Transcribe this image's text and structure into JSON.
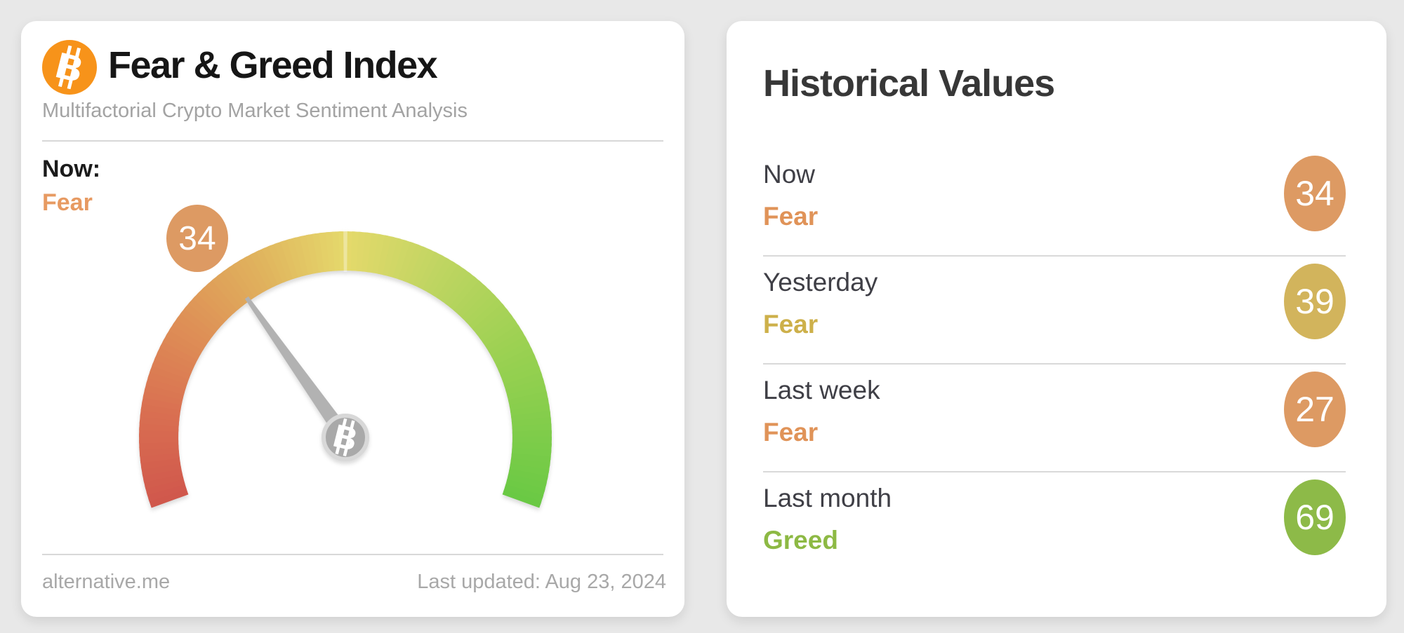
{
  "page": {
    "background_color": "#e8e8e8"
  },
  "gauge_card": {
    "title": "Fear & Greed Index",
    "subtitle": "Multifactorial Crypto Market Sentiment Analysis",
    "now_label": "Now:",
    "now_classification": "Fear",
    "value_label": "34",
    "source": "alternative.me",
    "last_updated": "Last updated: Aug 23, 2024",
    "colors": {
      "logo": "#f7931a",
      "classification_text": "#e79a62",
      "value_badge": "#dd9a63",
      "needle": "#b2b2b2",
      "pivot": "#a9a9a9",
      "pivot_border": "#d8d8d8"
    }
  },
  "historical_card": {
    "title": "Historical Values",
    "rows": [
      {
        "label": "Now",
        "classification": "Fear",
        "value": "34",
        "badge_color": "#dd9a63",
        "classification_color": "#e09358"
      },
      {
        "label": "Yesterday",
        "classification": "Fear",
        "value": "39",
        "badge_color": "#d2b45c",
        "classification_color": "#cdb04a"
      },
      {
        "label": "Last week",
        "classification": "Fear",
        "value": "27",
        "badge_color": "#dd9a63",
        "classification_color": "#e09358"
      },
      {
        "label": "Last month",
        "classification": "Greed",
        "value": "69",
        "badge_color": "#8dba48",
        "classification_color": "#8db944"
      }
    ]
  },
  "chart_data": {
    "type": "gauge",
    "title": "Fear & Greed Index",
    "value": 34,
    "min": 0,
    "max": 100,
    "classification": "Fear",
    "start_angle_deg": 200,
    "end_angle_deg": -20,
    "color_stops": [
      {
        "t": 0.0,
        "color": "#d0574c"
      },
      {
        "t": 0.12,
        "color": "#d96e51"
      },
      {
        "t": 0.25,
        "color": "#de8f56"
      },
      {
        "t": 0.38,
        "color": "#e0b35d"
      },
      {
        "t": 0.5,
        "color": "#e5d96b"
      },
      {
        "t": 0.63,
        "color": "#c0d562"
      },
      {
        "t": 0.78,
        "color": "#9cd152"
      },
      {
        "t": 1.0,
        "color": "#69c944"
      }
    ],
    "historical": [
      {
        "label": "Now",
        "value": 34,
        "classification": "Fear"
      },
      {
        "label": "Yesterday",
        "value": 39,
        "classification": "Fear"
      },
      {
        "label": "Last week",
        "value": 27,
        "classification": "Fear"
      },
      {
        "label": "Last month",
        "value": 69,
        "classification": "Greed"
      }
    ]
  }
}
